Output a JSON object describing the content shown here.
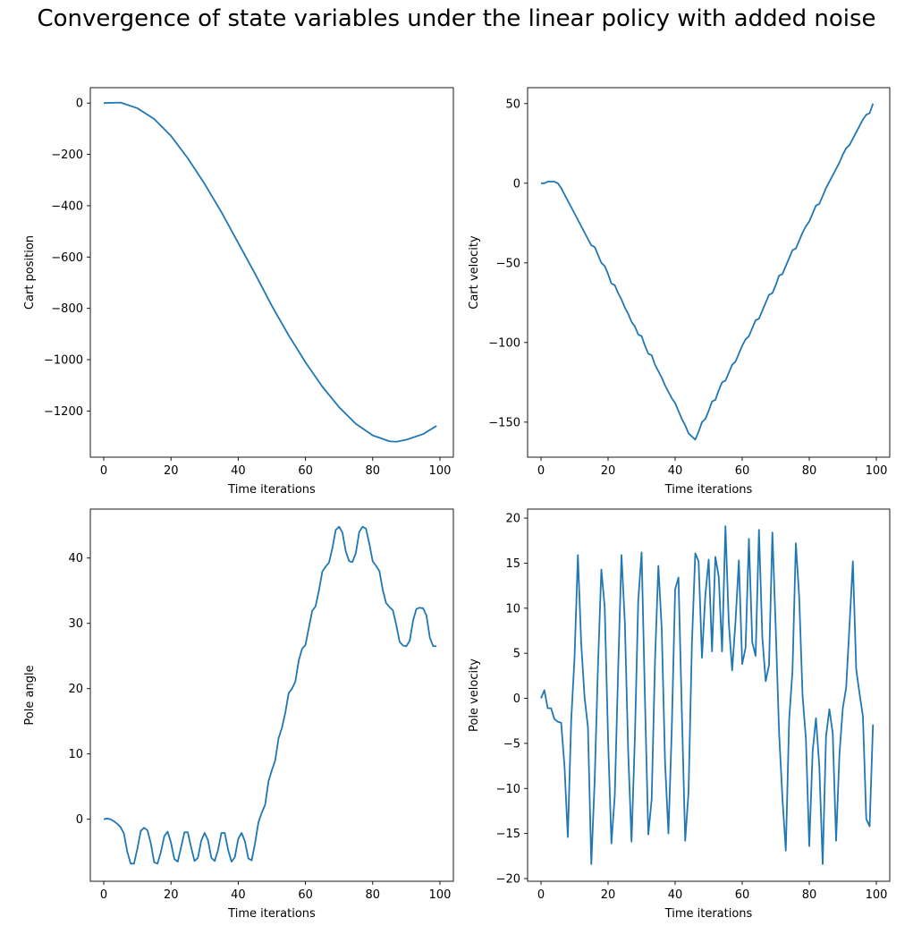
{
  "page": {
    "title": "Convergence of state variables under the linear policy with added noise"
  },
  "chart_data": [
    {
      "type": "line",
      "xlabel": "Time iterations",
      "ylabel": "Cart position",
      "xlim": [
        -4,
        104
      ],
      "ylim": [
        -1380,
        60
      ],
      "xticks": [
        0,
        20,
        40,
        60,
        80,
        100
      ],
      "yticks": [
        0,
        -200,
        -400,
        -600,
        -800,
        -1000,
        -1200
      ],
      "color": "#1f77b4",
      "series": [
        {
          "x": [
            0,
            5,
            10,
            15,
            20,
            25,
            30,
            35,
            40,
            45,
            50,
            55,
            60,
            65,
            70,
            75,
            80,
            85,
            87,
            90,
            95,
            99
          ],
          "y": [
            0,
            2,
            -20,
            -62,
            -128,
            -215,
            -315,
            -425,
            -545,
            -665,
            -790,
            -905,
            -1010,
            -1105,
            -1185,
            -1250,
            -1295,
            -1318,
            -1320,
            -1312,
            -1290,
            -1258
          ]
        }
      ]
    },
    {
      "type": "line",
      "xlabel": "Time iterations",
      "ylabel": "Cart velocity",
      "xlim": [
        -4,
        104
      ],
      "ylim": [
        -172,
        60
      ],
      "xticks": [
        0,
        20,
        40,
        60,
        80,
        100
      ],
      "yticks": [
        50,
        0,
        -50,
        -100,
        -150
      ],
      "color": "#1f77b4",
      "series": [
        {
          "x": [
            0,
            1,
            2,
            3,
            4,
            5,
            6,
            7,
            8,
            9,
            10,
            11,
            12,
            13,
            14,
            15,
            16,
            17,
            18,
            19,
            20,
            21,
            22,
            23,
            24,
            25,
            26,
            27,
            28,
            29,
            30,
            31,
            32,
            33,
            34,
            35,
            36,
            37,
            38,
            39,
            40,
            41,
            42,
            43,
            44,
            45,
            46,
            47,
            48,
            49,
            50,
            51,
            52,
            53,
            54,
            55,
            56,
            57,
            58,
            59,
            60,
            61,
            62,
            63,
            64,
            65,
            66,
            67,
            68,
            69,
            70,
            71,
            72,
            73,
            74,
            75,
            76,
            77,
            78,
            79,
            80,
            81,
            82,
            83,
            84,
            85,
            86,
            87,
            88,
            89,
            90,
            91,
            92,
            93,
            94,
            95,
            96,
            97,
            98,
            99
          ],
          "y": [
            0,
            0,
            1,
            1,
            1,
            0,
            -3,
            -7,
            -11,
            -15,
            -19,
            -23,
            -27,
            -31,
            -35,
            -39,
            -40,
            -45,
            -50,
            -52,
            -57,
            -63,
            -64,
            -69,
            -73,
            -78,
            -82,
            -87,
            -90,
            -95,
            -96,
            -102,
            -107,
            -108,
            -114,
            -118,
            -122,
            -127,
            -131,
            -135,
            -138,
            -143,
            -148,
            -152,
            -157,
            -159,
            -161,
            -156,
            -150,
            -148,
            -143,
            -137,
            -136,
            -130,
            -125,
            -124,
            -119,
            -114,
            -112,
            -107,
            -102,
            -98,
            -96,
            -91,
            -86,
            -85,
            -80,
            -75,
            -70,
            -69,
            -64,
            -58,
            -57,
            -52,
            -47,
            -42,
            -41,
            -36,
            -31,
            -27,
            -24,
            -19,
            -14,
            -13,
            -8,
            -3,
            1,
            5,
            9,
            13,
            18,
            22,
            24,
            28,
            32,
            36,
            40,
            43,
            44,
            50
          ]
        }
      ]
    },
    {
      "type": "line",
      "xlabel": "Time iterations",
      "ylabel": "Pole angle",
      "xlim": [
        -4,
        104
      ],
      "ylim": [
        -9.5,
        47.5
      ],
      "xticks": [
        0,
        20,
        40,
        60,
        80,
        100
      ],
      "yticks": [
        0,
        10,
        20,
        30,
        40
      ],
      "color": "#1f77b4",
      "series": [
        {
          "x": [
            0,
            1,
            2,
            3,
            4,
            5,
            6,
            7,
            8,
            9,
            10,
            11,
            12,
            13,
            14,
            15,
            16,
            17,
            18,
            19,
            20,
            21,
            22,
            23,
            24,
            25,
            26,
            27,
            28,
            29,
            30,
            31,
            32,
            33,
            34,
            35,
            36,
            37,
            38,
            39,
            40,
            41,
            42,
            43,
            44,
            45,
            46,
            47,
            48,
            49,
            50,
            51,
            52,
            53,
            54,
            55,
            56,
            57,
            58,
            59,
            60,
            61,
            62,
            63,
            64,
            65,
            66,
            67,
            68,
            69,
            70,
            71,
            72,
            73,
            74,
            75,
            76,
            77,
            78,
            79,
            80,
            81,
            82,
            83,
            84,
            85,
            86,
            87,
            88,
            89,
            90,
            91,
            92,
            93,
            94,
            95,
            96,
            97,
            98,
            99
          ],
          "y": [
            0,
            0.1,
            0,
            -0.3,
            -0.7,
            -1.2,
            -2.2,
            -5,
            -6.8,
            -6.8,
            -4.5,
            -1.8,
            -1.3,
            -1.7,
            -3.7,
            -6.6,
            -6.8,
            -5,
            -2.6,
            -1.9,
            -3.6,
            -6.1,
            -6.5,
            -4.3,
            -2,
            -2,
            -4.3,
            -6.4,
            -5.9,
            -3.3,
            -2.1,
            -3.2,
            -5.9,
            -6.4,
            -4.7,
            -2.1,
            -2.1,
            -4.7,
            -6.5,
            -5.8,
            -3,
            -2.1,
            -3.4,
            -6,
            -6.3,
            -3.7,
            -0.5,
            1,
            2.2,
            5.8,
            7.5,
            9,
            12.4,
            14,
            16.3,
            19.3,
            20,
            21.1,
            24.3,
            26.1,
            26.7,
            29.3,
            31.9,
            32.6,
            35,
            37.9,
            38.7,
            39.3,
            41.5,
            44.3,
            44.8,
            43.9,
            41,
            39.5,
            39.4,
            40.8,
            44,
            44.8,
            44.5,
            42.2,
            39.5,
            38.8,
            38,
            35.1,
            33.1,
            32.5,
            32,
            29.8,
            27.2,
            26.6,
            26.5,
            27.3,
            30.4,
            32.2,
            32.4,
            32.3,
            31.2,
            27.8,
            26.5,
            26.5
          ]
        }
      ]
    },
    {
      "type": "line",
      "xlabel": "Time iterations",
      "ylabel": "Pole velocity",
      "xlim": [
        -4,
        104
      ],
      "ylim": [
        -20.3,
        21
      ],
      "xticks": [
        0,
        20,
        40,
        60,
        80,
        100
      ],
      "yticks": [
        20,
        15,
        10,
        5,
        0,
        -5,
        -10,
        -15,
        -20
      ],
      "color": "#1f77b4",
      "series": [
        {
          "x": [
            0,
            1,
            2,
            3,
            4,
            5,
            6,
            7,
            8,
            9,
            10,
            11,
            12,
            13,
            14,
            15,
            16,
            17,
            18,
            19,
            20,
            21,
            22,
            23,
            24,
            25,
            26,
            27,
            28,
            29,
            30,
            31,
            32,
            33,
            34,
            35,
            36,
            37,
            38,
            39,
            40,
            41,
            42,
            43,
            44,
            45,
            46,
            47,
            48,
            49,
            50,
            51,
            52,
            53,
            54,
            55,
            56,
            57,
            58,
            59,
            60,
            61,
            62,
            63,
            64,
            65,
            66,
            67,
            68,
            69,
            70,
            71,
            72,
            73,
            74,
            75,
            76,
            77,
            78,
            79,
            80,
            81,
            82,
            83,
            84,
            85,
            86,
            87,
            88,
            89,
            90,
            91,
            92,
            93,
            94,
            95,
            96,
            97,
            98,
            99
          ],
          "y": [
            0,
            0.9,
            -1.1,
            -1.1,
            -2.3,
            -2.6,
            -2.7,
            -7.5,
            -15.4,
            -2.5,
            4.5,
            15.9,
            6,
            0.1,
            -3.2,
            -18.4,
            -9.2,
            3.7,
            14.3,
            10.1,
            -4.5,
            -16.1,
            -10.8,
            3.1,
            15.9,
            8.5,
            -5.9,
            -15.9,
            -4.3,
            10.9,
            16.2,
            -0.1,
            -15.1,
            -11.2,
            4.2,
            14.7,
            7.7,
            -7.2,
            -15,
            -3.4,
            12.1,
            13.4,
            -1.5,
            -15.8,
            -10.4,
            6,
            16.1,
            15.2,
            4.5,
            11.4,
            15.4,
            5.2,
            15.7,
            13.5,
            5.2,
            19.1,
            8.4,
            3.1,
            8.5,
            15.3,
            3.8,
            5.6,
            17.7,
            6.2,
            4.7,
            18.7,
            6.8,
            1.9,
            3.7,
            18.4,
            7.8,
            -3.8,
            -11.1,
            -16.9,
            -2.4,
            3.1,
            17.2,
            11.2,
            0.3,
            -4.5,
            -16.4,
            -5.9,
            -2.2,
            -7.6,
            -18.4,
            -4.2,
            -1.2,
            -3.9,
            -15.8,
            -6.2,
            -1.1,
            1.2,
            8.1,
            15.2,
            3.2,
            0.5,
            -2,
            -13.4,
            -14.2,
            -2.9
          ]
        }
      ]
    }
  ]
}
